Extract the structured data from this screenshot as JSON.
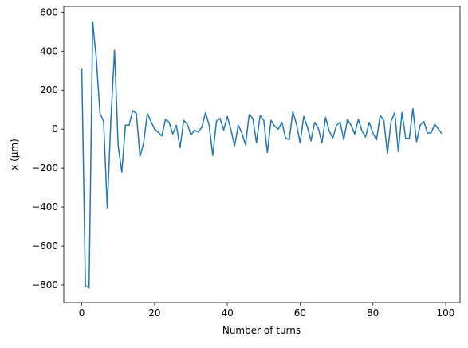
{
  "chart_data": {
    "type": "line",
    "x_label": "Number of turns",
    "y_label": "x (μm)",
    "x": [
      0,
      1,
      2,
      3,
      4,
      5,
      6,
      7,
      8,
      9,
      10,
      11,
      12,
      13,
      14,
      15,
      16,
      17,
      18,
      19,
      20,
      21,
      22,
      23,
      24,
      25,
      26,
      27,
      28,
      29,
      30,
      31,
      32,
      33,
      34,
      35,
      36,
      37,
      38,
      39,
      40,
      41,
      42,
      43,
      44,
      45,
      46,
      47,
      48,
      49,
      50,
      51,
      52,
      53,
      54,
      55,
      56,
      57,
      58,
      59,
      60,
      61,
      62,
      63,
      64,
      65,
      66,
      67,
      68,
      69,
      70,
      71,
      72,
      73,
      74,
      75,
      76,
      77,
      78,
      79,
      80,
      81,
      82,
      83,
      84,
      85,
      86,
      87,
      88,
      89,
      90,
      91,
      92,
      93,
      94,
      95,
      96,
      97,
      98,
      99
    ],
    "series": [
      {
        "color": "#1f77b4",
        "values": [
          310,
          -805,
          -815,
          550,
          360,
          80,
          40,
          -405,
          50,
          405,
          -85,
          -220,
          20,
          20,
          95,
          80,
          -140,
          -70,
          80,
          40,
          0,
          -15,
          -35,
          50,
          35,
          -25,
          20,
          -95,
          45,
          25,
          -30,
          -5,
          -15,
          10,
          85,
          20,
          -135,
          40,
          55,
          -5,
          65,
          -5,
          -85,
          20,
          -20,
          -80,
          75,
          55,
          -70,
          70,
          45,
          -120,
          45,
          15,
          0,
          35,
          -45,
          -55,
          90,
          25,
          -70,
          65,
          10,
          -60,
          35,
          5,
          -70,
          60,
          -10,
          -45,
          20,
          35,
          -55,
          50,
          20,
          -25,
          50,
          -10,
          -40,
          35,
          -20,
          -55,
          70,
          45,
          -125,
          40,
          85,
          -115,
          85,
          -45,
          -50,
          105,
          -65,
          20,
          40,
          -20,
          -20,
          25,
          0,
          -25
        ]
      }
    ],
    "xlim": [
      -4.95,
      103.95
    ],
    "xticks": [
      0,
      20,
      40,
      60,
      80,
      100
    ],
    "ylim": [
      -890,
      630
    ],
    "yticks": [
      {
        "value": -800,
        "label": "−800"
      },
      {
        "value": -600,
        "label": "−600"
      },
      {
        "value": -400,
        "label": "−400"
      },
      {
        "value": -200,
        "label": "−200"
      },
      0,
      200,
      400,
      600
    ]
  }
}
